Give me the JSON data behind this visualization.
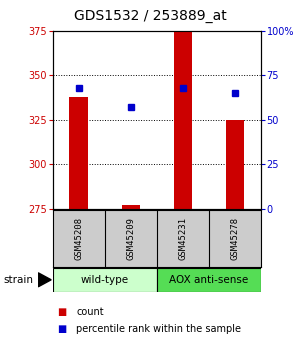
{
  "title": "GDS1532 / 253889_at",
  "samples": [
    "GSM45208",
    "GSM45209",
    "GSM45231",
    "GSM45278"
  ],
  "counts": [
    338,
    277,
    375,
    325
  ],
  "percentiles": [
    68,
    57,
    68,
    65
  ],
  "ylim_left": [
    275,
    375
  ],
  "ylim_right": [
    0,
    100
  ],
  "yticks_left": [
    275,
    300,
    325,
    350,
    375
  ],
  "yticks_right": [
    0,
    25,
    50,
    75,
    100
  ],
  "ytick_labels_right": [
    "0",
    "25",
    "50",
    "75",
    "100%"
  ],
  "bar_color": "#cc0000",
  "dot_color": "#0000cc",
  "bar_width": 0.35,
  "groups": [
    {
      "label": "wild-type",
      "indices": [
        0,
        1
      ],
      "color": "#ccffcc"
    },
    {
      "label": "AOX anti-sense",
      "indices": [
        2,
        3
      ],
      "color": "#55dd55"
    }
  ],
  "strain_label": "strain",
  "legend_items": [
    {
      "color": "#cc0000",
      "label": "count"
    },
    {
      "color": "#0000cc",
      "label": "percentile rank within the sample"
    }
  ],
  "background_color": "#ffffff",
  "plot_bg_color": "#ffffff",
  "sample_box_color": "#cccccc",
  "title_fontsize": 10,
  "tick_fontsize": 7,
  "sample_fontsize": 6.5,
  "group_fontsize": 7.5,
  "legend_fontsize": 7,
  "strain_fontsize": 7.5
}
